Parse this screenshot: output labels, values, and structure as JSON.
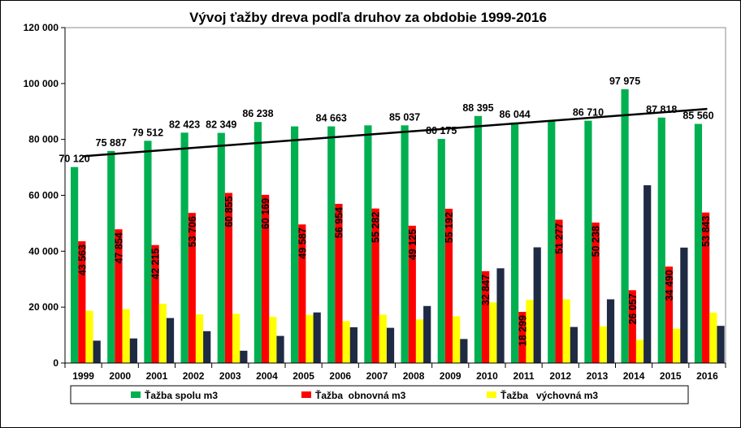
{
  "chart_data": {
    "type": "bar",
    "title": "Vývoj ťažby dreva podľa druhov za obdobie 1999-2016",
    "xlabel": "",
    "ylabel": "",
    "ylim": [
      0,
      120000
    ],
    "yticks": [
      0,
      20000,
      40000,
      60000,
      80000,
      100000,
      120000
    ],
    "ytick_labels": [
      "0",
      "20 000",
      "40 000",
      "60 000",
      "80 000",
      "100 000",
      "120 000"
    ],
    "categories": [
      "1999",
      "2000",
      "2001",
      "2002",
      "2003",
      "2004",
      "2005",
      "2006",
      "2007",
      "2008",
      "2009",
      "2010",
      "2011",
      "2012",
      "2013",
      "2014",
      "2015",
      "2016"
    ],
    "series": [
      {
        "name": "Ťažba spolu m3",
        "color": "#00b050",
        "values": [
          70120,
          75887,
          79512,
          82423,
          82349,
          86238,
          84663,
          84663,
          85037,
          85037,
          80175,
          88395,
          86044,
          86710,
          86710,
          97975,
          87818,
          85560
        ],
        "labels": [
          "70 120",
          "75 887",
          "79 512",
          "82 423",
          "82 349",
          "86 238",
          "",
          "84 663",
          "",
          "85 037",
          "80 175",
          "88 395",
          "86 044",
          "",
          "86 710",
          "97 975",
          "87 818",
          "85 560"
        ]
      },
      {
        "name": "Ťažba  obnovná m3",
        "color": "#ff0000",
        "values": [
          43563,
          47854,
          42215,
          53706,
          60855,
          60169,
          49587,
          56954,
          55282,
          49125,
          55192,
          32847,
          18299,
          51277,
          50238,
          26057,
          34490,
          53843
        ],
        "labels": [
          "43 563",
          "47 854",
          "42 215",
          "53 706",
          "60 855",
          "60 169",
          "49 587",
          "56 954",
          "55 282",
          "49 125",
          "55 192",
          "32 847",
          "18 299",
          "51 277",
          "50 238",
          "26 057",
          "34 490",
          "53 843"
        ]
      },
      {
        "name": "Ťažba   výchovná m3",
        "color": "#ffff00",
        "values": [
          18700,
          19300,
          21200,
          17400,
          17600,
          16500,
          17200,
          15000,
          17300,
          15600,
          16700,
          21700,
          22600,
          22800,
          13100,
          8300,
          12300,
          18000
        ]
      },
      {
        "color": "#1f2a44",
        "values": [
          8000,
          8800,
          16100,
          11400,
          4400,
          9700,
          18100,
          12800,
          12600,
          20400,
          8600,
          33900,
          41400,
          12900,
          22800,
          63600,
          41300,
          13300
        ]
      }
    ],
    "trendline": {
      "color": "#000000",
      "from": 74000,
      "to": 90900
    },
    "legend_placement": "bottom",
    "grid": false
  }
}
